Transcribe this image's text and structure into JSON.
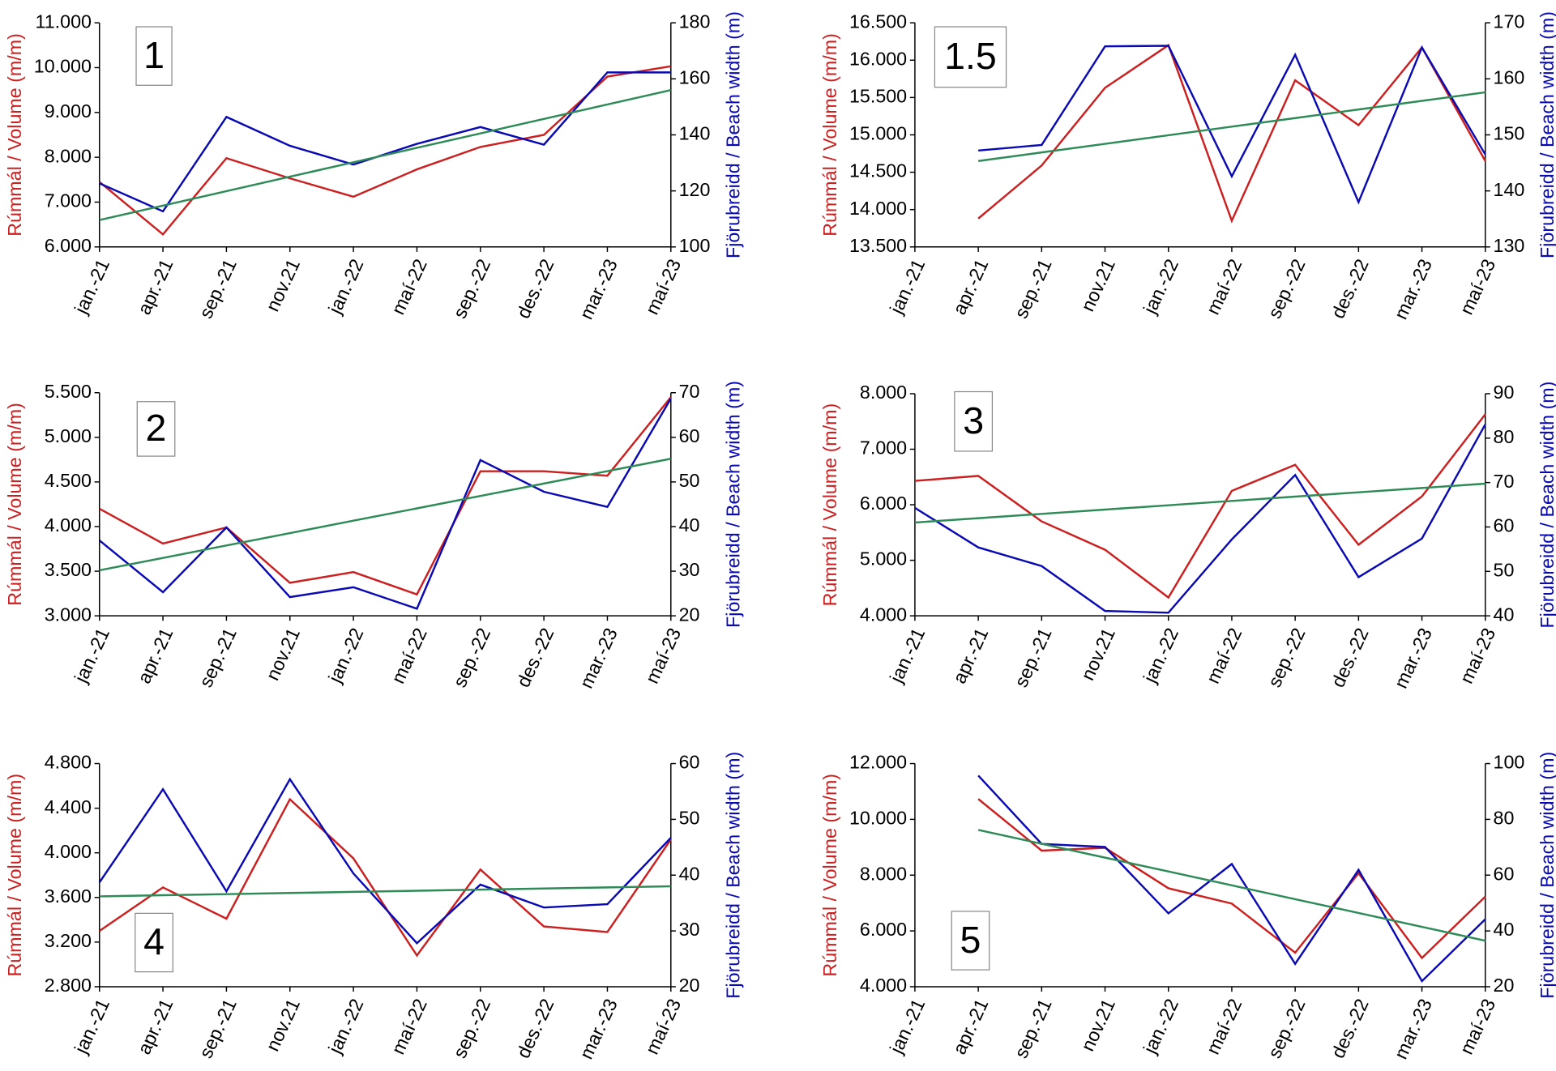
{
  "chart_data": [
    {
      "type": "line",
      "label": "1",
      "ylabel": "Rúmmál / Volume (m/m)",
      "y2label": "Fjörubreidd / Beach width (m)",
      "categories": [
        "jan.-21",
        "apr.-21",
        "sep.-21",
        "nov.21",
        "jan.-22",
        "maí-22",
        "sep.-22",
        "des.-22",
        "mar.-23",
        "maí-23"
      ],
      "ylim": [
        6000,
        11000
      ],
      "yticks": [
        {
          "value": 6000,
          "label": "6.000"
        },
        {
          "value": 7000,
          "label": "7.000"
        },
        {
          "value": 8000,
          "label": "8.000"
        },
        {
          "value": 9000,
          "label": "9.000"
        },
        {
          "value": 10000,
          "label": "10.000"
        },
        {
          "value": 11000,
          "label": "11.000"
        }
      ],
      "y2lim": [
        100,
        180
      ],
      "y2ticks": [
        100,
        120,
        140,
        160,
        180
      ],
      "series": [
        {
          "color": "#cc1f1f",
          "values": [
            7450,
            6280,
            7980,
            7530,
            7120,
            7730,
            8230,
            8500,
            9800,
            10030
          ]
        },
        {
          "color": "#0a0ab4",
          "axis": "y2",
          "values": [
            122.7,
            112.7,
            146.4,
            136.1,
            129.4,
            136.8,
            142.8,
            136.5,
            162.3,
            162.3
          ]
        },
        {
          "color": "#2e8b57",
          "values": [
            6600,
            6922,
            7244,
            7567,
            7889,
            8211,
            8533,
            8856,
            9178,
            9500
          ]
        }
      ]
    },
    {
      "type": "line",
      "label": "1.5",
      "ylabel": "Rúmmál / Volume (m/m)",
      "y2label": "Fjörubreidd / Beach width (m)",
      "categories": [
        "jan.-21",
        "apr.-21",
        "sep.-21",
        "nov.21",
        "jan.-22",
        "maí-22",
        "sep.-22",
        "des.-22",
        "mar.-23",
        "maí-23"
      ],
      "ylim": [
        13500,
        16500
      ],
      "yticks": [
        {
          "value": 13500,
          "label": "13.500"
        },
        {
          "value": 14000,
          "label": "14.000"
        },
        {
          "value": 14500,
          "label": "14.500"
        },
        {
          "value": 15000,
          "label": "15.000"
        },
        {
          "value": 15500,
          "label": "15.500"
        },
        {
          "value": 16000,
          "label": "16.000"
        },
        {
          "value": 16500,
          "label": "16.500"
        }
      ],
      "y2lim": [
        130,
        170
      ],
      "y2ticks": [
        130,
        140,
        150,
        160,
        170
      ],
      "series": [
        {
          "color": "#cc1f1f",
          "values": [
            null,
            13880,
            14590,
            15630,
            16200,
            13850,
            15730,
            15130,
            16170,
            14650
          ]
        },
        {
          "color": "#0a0ab4",
          "axis": "y2",
          "values": [
            null,
            147.2,
            148.2,
            165.8,
            165.9,
            142.6,
            164.3,
            138,
            165.6,
            146.5
          ]
        },
        {
          "color": "#2e8b57",
          "values": [
            null,
            14650,
            14765,
            14880,
            14995,
            15110,
            15225,
            15340,
            15455,
            15570
          ]
        }
      ]
    },
    {
      "type": "line",
      "label": "2",
      "ylabel": "Rúmmál / Volume (m/m)",
      "y2label": "Fjörubreidd / Beach width (m)",
      "categories": [
        "jan.-21",
        "apr.-21",
        "sep.-21",
        "nov.21",
        "jan.-22",
        "maí-22",
        "sep.-22",
        "des.-22",
        "mar.-23",
        "maí-23"
      ],
      "ylim": [
        3000,
        5500
      ],
      "yticks": [
        {
          "value": 3000,
          "label": "3.000"
        },
        {
          "value": 3500,
          "label": "3.500"
        },
        {
          "value": 4000,
          "label": "4.000"
        },
        {
          "value": 4500,
          "label": "4.500"
        },
        {
          "value": 5000,
          "label": "5.000"
        },
        {
          "value": 5500,
          "label": "5.500"
        }
      ],
      "y2lim": [
        20,
        70
      ],
      "y2ticks": [
        20,
        30,
        40,
        50,
        60,
        70
      ],
      "series": [
        {
          "color": "#cc1f1f",
          "values": [
            4200,
            3810,
            3990,
            3370,
            3490,
            3240,
            4620,
            4620,
            4570,
            5450
          ]
        },
        {
          "color": "#0a0ab4",
          "axis": "y2",
          "values": [
            36.9,
            25.3,
            39.8,
            24.2,
            26.4,
            21.6,
            54.9,
            47.8,
            44.4,
            68.7
          ]
        },
        {
          "color": "#2e8b57",
          "values": [
            3510,
            3649,
            3788,
            3927,
            4066,
            4204,
            4343,
            4482,
            4621,
            4760
          ]
        }
      ]
    },
    {
      "type": "line",
      "label": "3",
      "ylabel": "Rúmmál / Volume (m/m)",
      "y2label": "Fjörubreidd / Beach width (m)",
      "categories": [
        "jan.-21",
        "apr.-21",
        "sep.-21",
        "nov.21",
        "jan.-22",
        "maí-22",
        "sep.-22",
        "des.-22",
        "mar.-23",
        "maí-23"
      ],
      "ylim": [
        4000,
        8000
      ],
      "yticks": [
        {
          "value": 4000,
          "label": "4.000"
        },
        {
          "value": 5000,
          "label": "5.000"
        },
        {
          "value": 6000,
          "label": "6.000"
        },
        {
          "value": 7000,
          "label": "7.000"
        },
        {
          "value": 8000,
          "label": "8.000"
        }
      ],
      "y2lim": [
        40,
        90
      ],
      "y2ticks": [
        40,
        50,
        60,
        70,
        80,
        90
      ],
      "series": [
        {
          "color": "#cc1f1f",
          "values": [
            6430,
            6520,
            5700,
            5190,
            4330,
            6250,
            6720,
            5280,
            6150,
            7630
          ]
        },
        {
          "color": "#0a0ab4",
          "axis": "y2",
          "values": [
            64.3,
            55.4,
            51.2,
            41.1,
            40.7,
            57.2,
            71.7,
            48.7,
            57.4,
            83.1
          ]
        },
        {
          "color": "#2e8b57",
          "values": [
            5680,
            5758,
            5836,
            5913,
            5991,
            6069,
            6147,
            6224,
            6302,
            6380
          ]
        }
      ]
    },
    {
      "type": "line",
      "label": "4",
      "ylabel": "Rúmmál / Volume (m/m)",
      "y2label": "Fjörubreidd / Beach width (m)",
      "categories": [
        "jan.-21",
        "apr.-21",
        "sep.-21",
        "nov.21",
        "jan.-22",
        "maí-22",
        "sep.-22",
        "des.-22",
        "mar.-23",
        "maí-23"
      ],
      "ylim": [
        2800,
        4800
      ],
      "yticks": [
        {
          "value": 2800,
          "label": "2.800"
        },
        {
          "value": 3200,
          "label": "3.200"
        },
        {
          "value": 3600,
          "label": "3.600"
        },
        {
          "value": 4000,
          "label": "4.000"
        },
        {
          "value": 4400,
          "label": "4.400"
        },
        {
          "value": 4800,
          "label": "4.800"
        }
      ],
      "y2lim": [
        20,
        60
      ],
      "y2ticks": [
        20,
        30,
        40,
        50,
        60
      ],
      "series": [
        {
          "color": "#cc1f1f",
          "values": [
            3300,
            3690,
            3410,
            4480,
            3950,
            3080,
            3850,
            3340,
            3290,
            4120
          ]
        },
        {
          "color": "#0a0ab4",
          "axis": "y2",
          "values": [
            38.7,
            55.4,
            37.1,
            57.2,
            40.3,
            27.8,
            38.3,
            34.2,
            34.8,
            46.7
          ]
        },
        {
          "color": "#2e8b57",
          "values": [
            3610,
            3620,
            3630,
            3640,
            3650,
            3660,
            3670,
            3680,
            3690,
            3700
          ]
        }
      ]
    },
    {
      "type": "line",
      "label": "5",
      "ylabel": "Rúmmál / Volume (m/m)",
      "y2label": "Fjörubreidd / Beach width (m)",
      "categories": [
        "jan.-21",
        "apr.-21",
        "sep.-21",
        "nov.21",
        "jan.-22",
        "maí-22",
        "sep.-22",
        "des.-22",
        "mar.-23",
        "maí-23"
      ],
      "ylim": [
        4000,
        12000
      ],
      "yticks": [
        {
          "value": 4000,
          "label": "4.000"
        },
        {
          "value": 6000,
          "label": "6.000"
        },
        {
          "value": 8000,
          "label": "8.000"
        },
        {
          "value": 10000,
          "label": "10.000"
        },
        {
          "value": 12000,
          "label": "12.000"
        }
      ],
      "y2lim": [
        20,
        100
      ],
      "y2ticks": [
        20,
        40,
        60,
        80,
        100
      ],
      "series": [
        {
          "color": "#cc1f1f",
          "values": [
            null,
            10730,
            8880,
            8980,
            7530,
            6980,
            5220,
            8070,
            5030,
            7230
          ]
        },
        {
          "color": "#0a0ab4",
          "axis": "y2",
          "values": [
            null,
            95.7,
            71.2,
            70.1,
            46.3,
            64,
            28.2,
            61.9,
            22,
            44.2
          ]
        },
        {
          "color": "#2e8b57",
          "values": [
            null,
            9620,
            9124,
            8628,
            8131,
            7635,
            7139,
            6643,
            6146,
            5650
          ]
        }
      ]
    }
  ]
}
